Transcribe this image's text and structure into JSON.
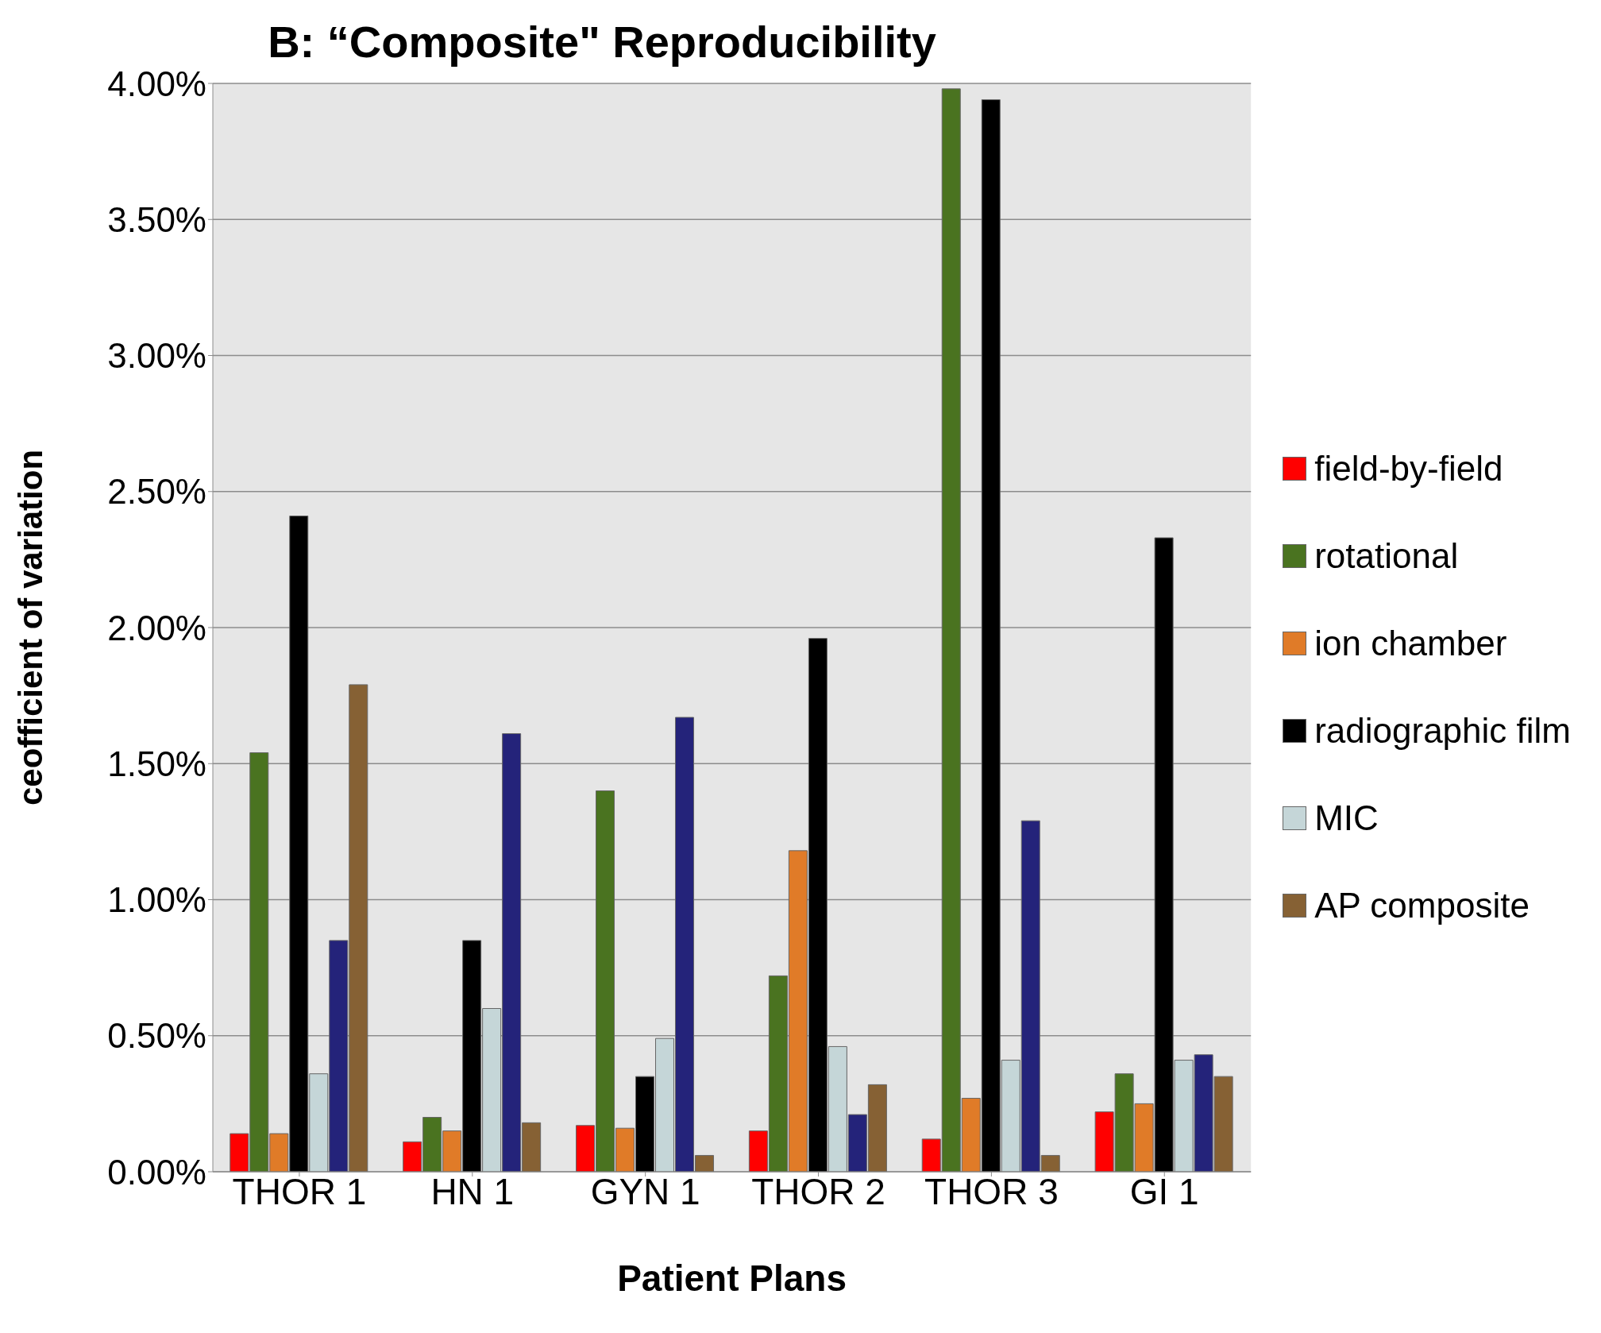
{
  "chart_data": {
    "type": "bar",
    "title": "B: “Composite\" Reproducibility",
    "xlabel": "Patient Plans",
    "ylabel": "ceofficient of variation",
    "categories": [
      "THOR 1",
      "HN 1",
      "GYN 1",
      "THOR 2",
      "THOR 3",
      "GI 1"
    ],
    "series": [
      {
        "name": "field-by-field",
        "color": "#ff0000",
        "values": [
          0.14,
          0.11,
          0.17,
          0.15,
          0.12,
          0.22
        ]
      },
      {
        "name": "rotational",
        "color": "#4a7320",
        "values": [
          1.54,
          0.2,
          1.4,
          0.72,
          3.98,
          0.36
        ]
      },
      {
        "name": "ion chamber",
        "color": "#e07b28",
        "values": [
          0.14,
          0.15,
          0.16,
          1.18,
          0.27,
          0.25
        ]
      },
      {
        "name": "radiographic film",
        "color": "#000000",
        "values": [
          2.41,
          0.85,
          0.35,
          1.96,
          3.94,
          2.33
        ]
      },
      {
        "name": "MIC",
        "color": "#c5d6d8",
        "values": [
          0.36,
          0.6,
          0.49,
          0.46,
          0.41,
          0.41
        ]
      },
      {
        "color": "#24237a",
        "values": [
          0.85,
          1.61,
          1.67,
          0.21,
          1.29,
          0.43
        ]
      },
      {
        "name": "AP composite",
        "color": "#866134",
        "values": [
          1.79,
          0.18,
          0.06,
          0.32,
          0.06,
          0.35
        ]
      }
    ],
    "ylim": [
      0,
      4
    ],
    "yticks": [
      {
        "value": 0,
        "label": "0.00%"
      },
      {
        "value": 0.5,
        "label": "0.50%"
      },
      {
        "value": 1,
        "label": "1.00%"
      },
      {
        "value": 1.5,
        "label": "1.50%"
      },
      {
        "value": 2,
        "label": "2.00%"
      },
      {
        "value": 2.5,
        "label": "2.50%"
      },
      {
        "value": 3,
        "label": "3.00%"
      },
      {
        "value": 3.5,
        "label": "3.50%"
      },
      {
        "value": 4,
        "label": "4.00%"
      }
    ],
    "grid": "y",
    "legend": "right"
  }
}
